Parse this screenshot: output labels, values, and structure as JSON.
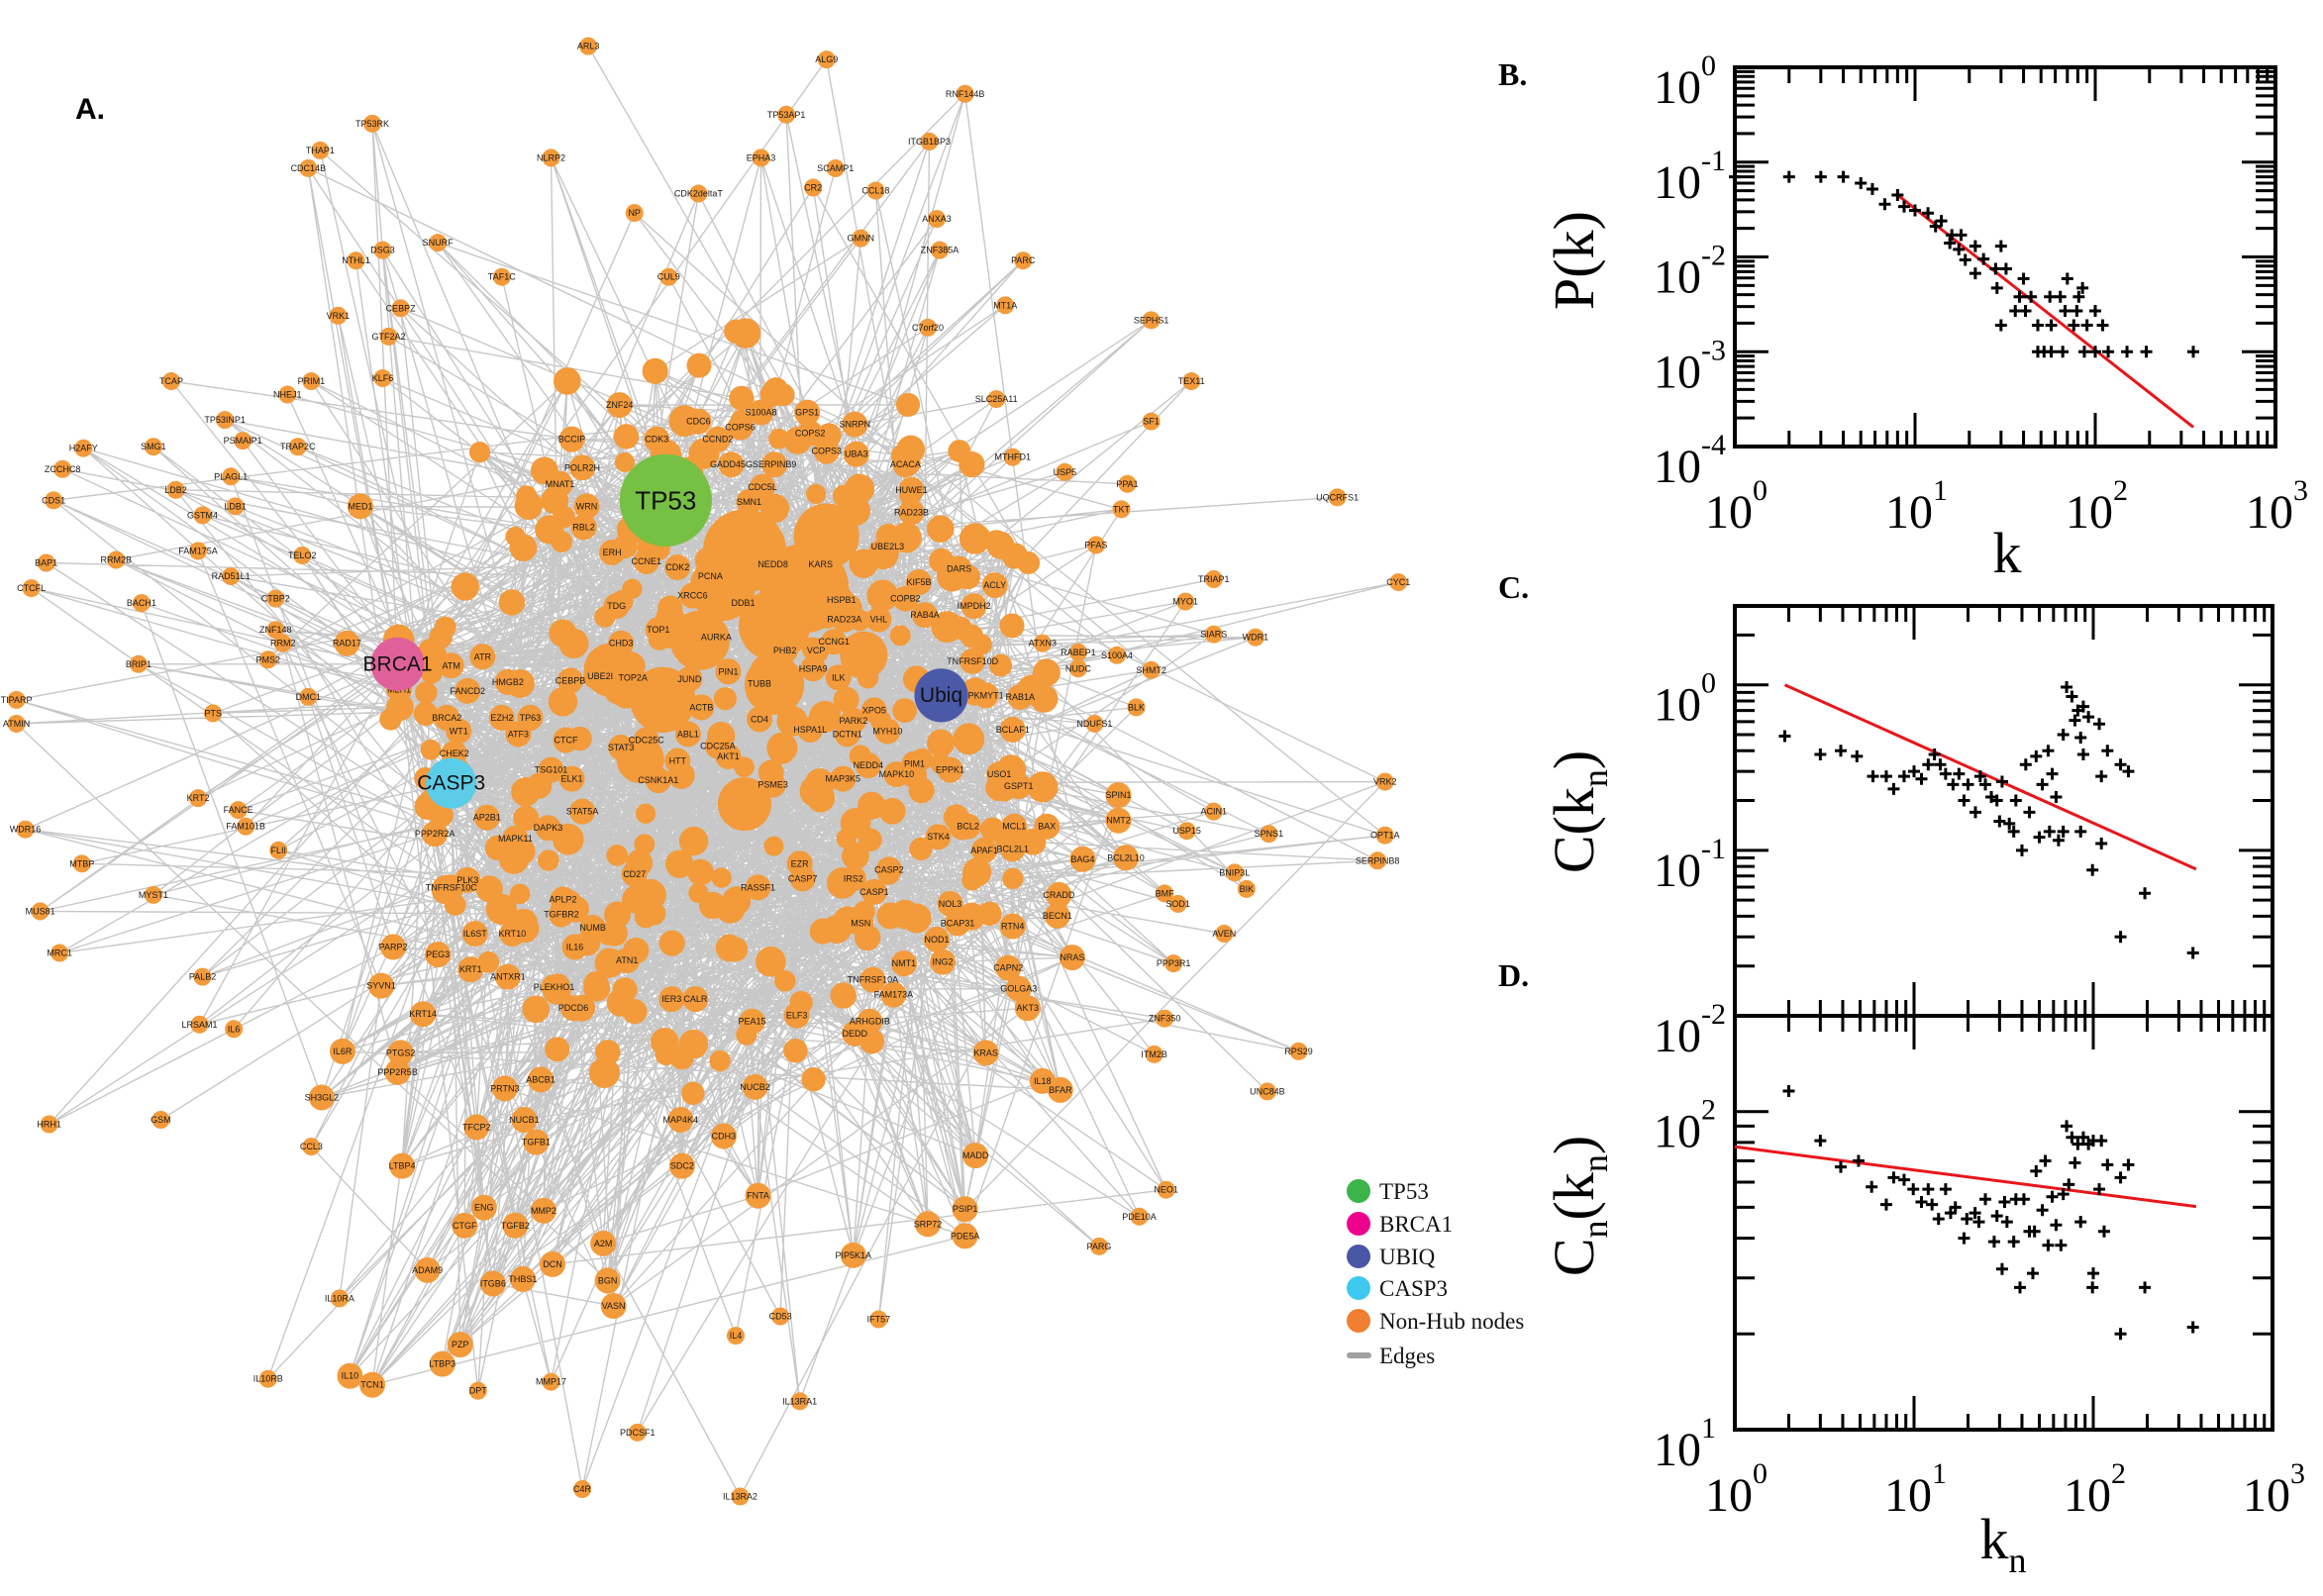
{
  "panel_labels": {
    "a": "A.",
    "b": "B.",
    "c": "C.",
    "d": "D."
  },
  "network": {
    "edge_color": "#c8c8c8",
    "node_color": "#f39a3a",
    "hubs": [
      {
        "label": "TP53",
        "color": "#76c043"
      },
      {
        "label": "BRCA1",
        "color": "#e0609a"
      },
      {
        "label": "Ubiq",
        "color": "#4a5aa8"
      },
      {
        "label": "CASP3",
        "color": "#5bcde8"
      }
    ],
    "nodes": [
      "TP53RK",
      "THAP1",
      "CDC14B",
      "ARL3",
      "ALG9",
      "RNF144B",
      "TP53AP1",
      "ITGB1BP3",
      "NLRP2",
      "EPHA3",
      "SCAMP1",
      "CR2",
      "CDK2deltaT",
      "CCL18",
      "NP",
      "ANXA3",
      "ZNF385A",
      "GMNN",
      "NTHL1",
      "DSG3",
      "SNURF",
      "PARC",
      "CUL9",
      "TAF1C",
      "MT1A",
      "SEPHS1",
      "C7orf20",
      "VRK1",
      "CEBPZ",
      "GTF2A2",
      "TCAP",
      "KLF6",
      "PRIM1",
      "TEX11",
      "NHEJ1",
      "SLC25A11",
      "H2AFY",
      "SMG1",
      "TP53INP1",
      "PSMAIP1",
      "TRAP2C",
      "PLAGL1",
      "SF1",
      "ZCCHC8",
      "LDB2",
      "GSTM4",
      "LDB1",
      "UQCRFS1",
      "PPA1",
      "USP5",
      "MTHFD1",
      "CDS1",
      "RRM2B",
      "FAM175A",
      "BAP1",
      "CTCFL",
      "BACH1",
      "RAD51L1",
      "TELO2",
      "CTBP2",
      "TKT",
      "PFAS",
      "TRIAP1",
      "CYC1",
      "MYO1",
      "SIARS",
      "WDR1",
      "ATXN3",
      "RABEP1",
      "S100A4",
      "NUDC",
      "SHMT2",
      "ZNF148",
      "RRM2",
      "PMS2",
      "BRIP1",
      "DMC1",
      "PTS",
      "TIPARP",
      "ATMIN",
      "NDUFS1",
      "BLK",
      "VRK2",
      "OPT1A",
      "SERPINB8",
      "SPNS1",
      "ACIN1",
      "BNIP3L",
      "BIK",
      "USP15",
      "AVEN",
      "SOD1",
      "BMF",
      "PPP3R1",
      "UNC84B",
      "RPS29",
      "ZNF350",
      "ITM2B",
      "PDE10A",
      "NEO1",
      "PARG",
      "IFT57",
      "CD53",
      "IL4",
      "IL13RA1",
      "PDCSF1",
      "C4R",
      "IL13RA2",
      "MMP17",
      "DPT",
      "IL10RA",
      "IL10RB",
      "CCL3",
      "GSM",
      "HRH1",
      "IL6",
      "LRSAM1",
      "PALB2",
      "MRC1",
      "MUS81",
      "MTBP",
      "MYST1",
      "FANCE",
      "FLII",
      "KRT2",
      "FAM101B",
      "WDR16",
      "ZNF24",
      "CDC6",
      "COPS6",
      "BCCIP",
      "CCND2",
      "CDK3",
      "POLR2H",
      "MNAT1",
      "WRN",
      "RBL2",
      "ERH",
      "CCNE1",
      "CDK2",
      "PCNA",
      "XRCC6",
      "DDB1",
      "NEDD8",
      "KARS",
      "HSPB1",
      "VHL",
      "RAD23A",
      "PHB2",
      "VCP",
      "PIN1",
      "TUBB",
      "ABL1",
      "ACTB",
      "CD4",
      "ILK",
      "HSPA9",
      "XPO5",
      "PARK2",
      "DCTN1",
      "MYH10",
      "PIM1",
      "NEDD4",
      "MAPK10",
      "EPPK1",
      "USO1",
      "TNFRSF10D",
      "PKMYT1",
      "RAB1A",
      "BCLAF1",
      "RAB4A",
      "IMPDH2",
      "DARS",
      "ACLY",
      "KIF5B",
      "COPB2",
      "UBE2L3",
      "HUWE1",
      "RAD23B",
      "ACACA",
      "UBA3",
      "COPS2",
      "COPS3",
      "SNRPN",
      "GPS1",
      "S100A8",
      "SMN1",
      "CDC5L",
      "SERPINB9",
      "GADD45G",
      "TOP1",
      "AURKA",
      "CHD3",
      "TDG",
      "UBE2I",
      "TOP2A",
      "JUND",
      "STAT3",
      "CDC25A",
      "CDC25C",
      "HTT",
      "AKT1",
      "CSNK1A1",
      "ELK1",
      "CEBPB",
      "HSPA1L",
      "MAP3K5",
      "PSME3",
      "GSPT1",
      "CCNG1",
      "ATM",
      "ATR",
      "WT1",
      "ATF3",
      "CHEK2",
      "EZH2",
      "TP63",
      "BRCA2",
      "FANCD2",
      "HMGB2",
      "MLH1",
      "MED1",
      "RAD17",
      "CTCF",
      "TSG101",
      "STAT5A",
      "DAPK3",
      "MAPK11",
      "AP2B1",
      "PPP2R2A",
      "PLK3",
      "KRT10",
      "IL6ST",
      "NUMB",
      "TGFBR2",
      "APLP2",
      "IL16",
      "PLEKHO1",
      "KRT1",
      "ANTXR1",
      "KRT14",
      "PDCD6",
      "IER3",
      "CALR",
      "PEA15",
      "ELF3",
      "ATN1",
      "ARHGDIB",
      "DEDD",
      "NUCB1",
      "TGFB1",
      "ABCB1",
      "PRTN3",
      "MAP4K4",
      "CDH3",
      "NUCB2",
      "SDC2",
      "FNTA",
      "MMP2",
      "ENG",
      "CTGF",
      "TGFB2",
      "THBS1",
      "ITGB6",
      "A2M",
      "BGN",
      "DCN",
      "ADAM9",
      "LTBP3",
      "TCN1",
      "IL10",
      "PZP",
      "PTGS2",
      "PPP2R5B",
      "SH3GL2",
      "LTBP4",
      "IL6R",
      "TFCP2",
      "VASN",
      "PIP5K1A",
      "PDE5A",
      "SRP72",
      "PSIP1",
      "MADD",
      "KRAS",
      "AKT3",
      "GOLGA3",
      "CAPN2",
      "NRAS",
      "IL18",
      "BFAR",
      "RTN4",
      "BECN1",
      "CRADD",
      "BAG4",
      "BAX",
      "BCL2L10",
      "BCL2L1",
      "NMT2",
      "SPIN1",
      "APAF1",
      "MCL1",
      "BCL2",
      "STK4",
      "CASP2",
      "CASP1",
      "IRS2",
      "NOL3",
      "BCAP31",
      "NOD1",
      "ING2",
      "NMT1",
      "TNFRSF10A",
      "FAM173A",
      "MSN",
      "RASSF1",
      "EZR",
      "CASP7",
      "CD27",
      "TNFRSF10C",
      "PEG3",
      "PARP2",
      "SYVN1"
    ]
  },
  "legend": {
    "items": [
      {
        "label": "TP53",
        "color": "#3bb54a",
        "shape": "circle"
      },
      {
        "label": "BRCA1",
        "color": "#ec008c",
        "shape": "circle"
      },
      {
        "label": "UBIQ",
        "color": "#4a56a6",
        "shape": "circle"
      },
      {
        "label": "CASP3",
        "color": "#3fc8f0",
        "shape": "circle"
      },
      {
        "label": "Non-Hub nodes",
        "color": "#f07f32",
        "shape": "circle"
      },
      {
        "label": "Edges",
        "color": "#a0a0a0",
        "shape": "line"
      }
    ]
  },
  "chart_data": [
    {
      "type": "scatter",
      "panel": "B.",
      "xlabel": [
        {
          "text": "k"
        }
      ],
      "ylabel": [
        {
          "text": "P(k)"
        }
      ],
      "xscale": "log",
      "yscale": "log",
      "xlim": [
        1,
        1000
      ],
      "ylim": [
        0.0001,
        1
      ],
      "x_ticks": [
        {
          "base": "10",
          "exp": "0",
          "value": 1
        },
        {
          "base": "10",
          "exp": "1",
          "value": 10
        },
        {
          "base": "10",
          "exp": "2",
          "value": 100
        },
        {
          "base": "10",
          "exp": "3",
          "value": 1000
        }
      ],
      "y_ticks": [
        {
          "base": "10",
          "exp": "0",
          "value": 1
        },
        {
          "base": "10",
          "exp": "-1",
          "value": 0.1
        },
        {
          "base": "10",
          "exp": "-2",
          "value": 0.01
        },
        {
          "base": "10",
          "exp": "-3",
          "value": 0.001
        },
        {
          "base": "10",
          "exp": "-4",
          "value": 0.0001
        }
      ],
      "marker": "+",
      "marker_color": "#000000",
      "fit_color": "#e8161b",
      "points": [
        [
          1,
          0.07
        ],
        [
          2,
          0.07
        ],
        [
          3,
          0.07
        ],
        [
          4,
          0.07
        ],
        [
          5,
          0.06
        ],
        [
          5.8,
          0.052
        ],
        [
          6.8,
          0.036
        ],
        [
          8,
          0.045
        ],
        [
          8.7,
          0.034
        ],
        [
          10,
          0.031
        ],
        [
          11.8,
          0.029
        ],
        [
          13,
          0.021
        ],
        [
          14,
          0.024
        ],
        [
          15.6,
          0.014
        ],
        [
          16,
          0.017
        ],
        [
          17.5,
          0.012
        ],
        [
          18,
          0.017
        ],
        [
          19,
          0.0093
        ],
        [
          21.6,
          0.013
        ],
        [
          21.6,
          0.0067
        ],
        [
          24,
          0.0095
        ],
        [
          28,
          0.0075
        ],
        [
          28.5,
          0.0047
        ],
        [
          30,
          0.013
        ],
        [
          30,
          0.0019
        ],
        [
          32,
          0.0075
        ],
        [
          36,
          0.0027
        ],
        [
          38,
          0.0038
        ],
        [
          40,
          0.0059
        ],
        [
          41,
          0.0027
        ],
        [
          44,
          0.0038
        ],
        [
          48,
          0.0019
        ],
        [
          48,
          0.001
        ],
        [
          52,
          0.001
        ],
        [
          56,
          0.0038
        ],
        [
          57,
          0.0019
        ],
        [
          57,
          0.001
        ],
        [
          64,
          0.0038
        ],
        [
          66,
          0.001
        ],
        [
          68,
          0.0027
        ],
        [
          70,
          0.0059
        ],
        [
          76,
          0.0019
        ],
        [
          79,
          0.0027
        ],
        [
          81,
          0.0038
        ],
        [
          85,
          0.0047
        ],
        [
          87,
          0.001
        ],
        [
          90,
          0.0019
        ],
        [
          100,
          0.0027
        ],
        [
          100,
          0.001
        ],
        [
          110,
          0.0019
        ],
        [
          118,
          0.001
        ],
        [
          150,
          0.001
        ],
        [
          192,
          0.001
        ],
        [
          350,
          0.001
        ]
      ],
      "fit_line": [
        [
          8,
          0.045
        ],
        [
          350,
          0.00016
        ]
      ]
    },
    {
      "type": "scatter",
      "panel": "C.",
      "xlabel": [],
      "ylabel": [
        {
          "text": "C(k"
        },
        {
          "text": "n",
          "sub": true
        },
        {
          "text": ")"
        }
      ],
      "xscale": "log",
      "yscale": "log",
      "xlim": [
        1,
        1000
      ],
      "ylim": [
        0.01,
        3
      ],
      "x_ticks": [],
      "y_ticks": [
        {
          "base": "10",
          "exp": "0",
          "value": 1
        },
        {
          "base": "10",
          "exp": "-1",
          "value": 0.1
        },
        {
          "base": "10",
          "exp": "-2",
          "value": 0.01
        }
      ],
      "marker": "+",
      "marker_color": "#000000",
      "fit_color": "#e8161b",
      "points": [
        [
          1.9,
          0.49
        ],
        [
          3,
          0.38
        ],
        [
          3.9,
          0.4
        ],
        [
          4.8,
          0.37
        ],
        [
          5.9,
          0.28
        ],
        [
          7,
          0.28
        ],
        [
          7.7,
          0.235
        ],
        [
          8.8,
          0.28
        ],
        [
          10,
          0.3
        ],
        [
          11,
          0.27
        ],
        [
          12,
          0.33
        ],
        [
          13,
          0.38
        ],
        [
          14,
          0.33
        ],
        [
          15,
          0.29
        ],
        [
          16.5,
          0.25
        ],
        [
          17.8,
          0.29
        ],
        [
          19,
          0.2
        ],
        [
          20,
          0.25
        ],
        [
          22,
          0.17
        ],
        [
          23.4,
          0.28
        ],
        [
          25,
          0.25
        ],
        [
          27,
          0.21
        ],
        [
          29,
          0.2
        ],
        [
          31,
          0.26
        ],
        [
          30,
          0.15
        ],
        [
          34,
          0.145
        ],
        [
          36,
          0.13
        ],
        [
          37,
          0.2
        ],
        [
          40,
          0.1
        ],
        [
          42,
          0.33
        ],
        [
          44,
          0.17
        ],
        [
          48,
          0.37
        ],
        [
          50,
          0.12
        ],
        [
          52,
          0.25
        ],
        [
          56,
          0.4
        ],
        [
          57,
          0.13
        ],
        [
          59,
          0.29
        ],
        [
          62,
          0.21
        ],
        [
          64,
          0.115
        ],
        [
          68,
          0.13
        ],
        [
          68,
          0.5
        ],
        [
          71,
          0.97
        ],
        [
          76,
          0.85
        ],
        [
          79,
          0.61
        ],
        [
          82,
          0.7
        ],
        [
          85,
          0.48
        ],
        [
          88,
          0.74
        ],
        [
          88,
          0.38
        ],
        [
          85,
          0.13
        ],
        [
          94,
          0.64
        ],
        [
          99,
          0.076
        ],
        [
          108,
          0.58
        ],
        [
          111,
          0.28
        ],
        [
          111,
          0.11
        ],
        [
          120,
          0.4
        ],
        [
          142,
          0.33
        ],
        [
          157,
          0.3
        ],
        [
          142,
          0.03
        ],
        [
          194,
          0.055
        ],
        [
          360,
          0.024
        ]
      ],
      "fit_line": [
        [
          1.9,
          1.0
        ],
        [
          375,
          0.077
        ]
      ]
    },
    {
      "type": "scatter",
      "panel": "D.",
      "xlabel": [
        {
          "text": "k"
        },
        {
          "text": "n",
          "sub": true
        }
      ],
      "ylabel": [
        {
          "text": "C"
        },
        {
          "text": "n",
          "sub": true
        },
        {
          "text": "(k"
        },
        {
          "text": "n",
          "sub": true
        },
        {
          "text": ")"
        }
      ],
      "xscale": "log",
      "yscale": "log",
      "xlim": [
        1,
        1000
      ],
      "ylim": [
        10,
        200
      ],
      "x_ticks": [
        {
          "base": "10",
          "exp": "0",
          "value": 1
        },
        {
          "base": "10",
          "exp": "1",
          "value": 10
        },
        {
          "base": "10",
          "exp": "2",
          "value": 100
        },
        {
          "base": "10",
          "exp": "3",
          "value": 1000
        }
      ],
      "y_ticks": [
        {
          "base": "10",
          "exp": "2",
          "value": 100
        },
        {
          "base": "10",
          "exp": "1",
          "value": 10
        }
      ],
      "marker": "+",
      "marker_color": "#000000",
      "fit_color": "#e8161b",
      "points": [
        [
          2,
          116
        ],
        [
          3,
          81
        ],
        [
          3.9,
          67
        ],
        [
          4.9,
          70
        ],
        [
          5.8,
          58
        ],
        [
          7,
          51
        ],
        [
          7.7,
          62
        ],
        [
          8.8,
          61
        ],
        [
          9.9,
          57
        ],
        [
          11,
          52
        ],
        [
          12,
          57
        ],
        [
          12.6,
          51
        ],
        [
          13.7,
          46
        ],
        [
          15,
          57
        ],
        [
          16,
          48
        ],
        [
          17,
          50
        ],
        [
          19,
          40
        ],
        [
          19.7,
          46
        ],
        [
          21.9,
          48
        ],
        [
          23,
          45
        ],
        [
          25,
          53
        ],
        [
          28,
          39
        ],
        [
          29,
          47
        ],
        [
          31,
          32
        ],
        [
          32,
          52
        ],
        [
          33,
          45
        ],
        [
          36,
          39
        ],
        [
          37,
          53
        ],
        [
          39,
          28
        ],
        [
          41,
          53
        ],
        [
          44,
          42
        ],
        [
          46,
          31
        ],
        [
          47,
          42
        ],
        [
          48,
          65
        ],
        [
          52,
          49
        ],
        [
          54,
          70
        ],
        [
          56,
          38
        ],
        [
          59,
          54
        ],
        [
          62,
          44
        ],
        [
          66,
          38
        ],
        [
          68,
          55
        ],
        [
          71,
          90
        ],
        [
          73,
          59
        ],
        [
          76,
          83
        ],
        [
          79,
          69
        ],
        [
          82,
          79
        ],
        [
          85,
          45
        ],
        [
          88,
          83
        ],
        [
          94,
          79
        ],
        [
          100,
          81
        ],
        [
          100,
          31
        ],
        [
          99,
          28
        ],
        [
          108,
          57
        ],
        [
          111,
          81
        ],
        [
          115,
          42
        ],
        [
          120,
          68
        ],
        [
          142,
          62
        ],
        [
          157,
          68
        ],
        [
          142,
          20
        ],
        [
          194,
          28
        ],
        [
          360,
          21
        ]
      ],
      "fit_line": [
        [
          1,
          77.5
        ],
        [
          375,
          50.3
        ]
      ]
    }
  ]
}
